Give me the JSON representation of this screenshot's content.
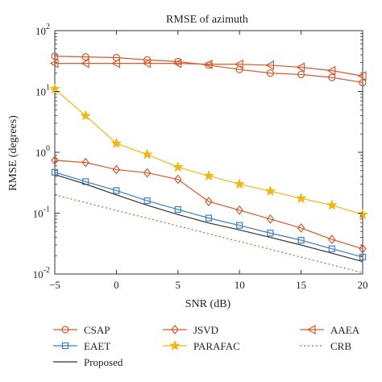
{
  "chart_data": {
    "type": "line",
    "title": "RMSE of azimuth",
    "xlabel": "SNR (dB)",
    "ylabel": "RMSE (degrees)",
    "x_scale": "linear",
    "y_scale": "log",
    "xlim": [
      -5,
      20
    ],
    "ylim": [
      0.01,
      100
    ],
    "x_ticks": [
      -5,
      0,
      5,
      10,
      15,
      20
    ],
    "y_ticks": [
      {
        "value": 0.01,
        "base": "10",
        "exp": "-2"
      },
      {
        "value": 0.1,
        "base": "10",
        "exp": "-1"
      },
      {
        "value": 1,
        "base": "10",
        "exp": "0"
      },
      {
        "value": 10,
        "base": "10",
        "exp": "1"
      },
      {
        "value": 100,
        "base": "10",
        "exp": "2"
      }
    ],
    "grid": false,
    "legend_position": "bottom",
    "series": [
      {
        "name": "CSAP",
        "color": "#d35a2a",
        "marker": "circle",
        "line": "solid",
        "x": [
          -5,
          -2.5,
          0,
          2.5,
          5,
          7.5,
          10,
          12.5,
          15,
          17.5,
          20
        ],
        "y": [
          38,
          37,
          36,
          33,
          31,
          27,
          23,
          20,
          19,
          17,
          14
        ]
      },
      {
        "name": "JSVD",
        "color": "#d35a2a",
        "marker": "diamond",
        "line": "solid",
        "x": [
          -5,
          -2.5,
          0,
          2.5,
          5,
          7.5,
          10,
          12.5,
          15,
          17.5,
          20
        ],
        "y": [
          0.74,
          0.68,
          0.52,
          0.46,
          0.36,
          0.155,
          0.112,
          0.08,
          0.057,
          0.037,
          0.026
        ]
      },
      {
        "name": "AAEA",
        "color": "#d35a2a",
        "marker": "triangle-left",
        "line": "solid",
        "x": [
          -5,
          -2.5,
          0,
          2.5,
          5,
          7.5,
          10,
          12.5,
          15,
          17.5,
          20
        ],
        "y": [
          29,
          29,
          29,
          29,
          29,
          28,
          28,
          27,
          25,
          22,
          18
        ]
      },
      {
        "name": "EAET",
        "color": "#3a7fc4",
        "marker": "square",
        "line": "solid",
        "x": [
          -5,
          -2.5,
          0,
          2.5,
          5,
          7.5,
          10,
          12.5,
          15,
          17.5,
          20
        ],
        "y": [
          0.47,
          0.33,
          0.235,
          0.16,
          0.115,
          0.083,
          0.063,
          0.047,
          0.036,
          0.026,
          0.019
        ]
      },
      {
        "name": "PARAFAC",
        "color": "#f2b515",
        "marker": "star",
        "line": "solid",
        "x": [
          -5,
          -2.5,
          0,
          2.5,
          5,
          7.5,
          10,
          12.5,
          15,
          17.5,
          20
        ],
        "y": [
          11,
          4,
          1.4,
          0.92,
          0.57,
          0.41,
          0.3,
          0.23,
          0.175,
          0.135,
          0.095
        ]
      },
      {
        "name": "CRB",
        "color": "#d35a2a",
        "marker": "none",
        "line": "dotted",
        "x": [
          -5,
          20
        ],
        "y": [
          0.2,
          0.0105
        ]
      },
      {
        "name": "Proposed",
        "color": "#333333",
        "marker": "none",
        "line": "solid",
        "x": [
          -5,
          -2.5,
          0,
          2.5,
          5,
          7.5,
          10,
          12.5,
          15,
          17.5,
          20
        ],
        "y": [
          0.43,
          0.3,
          0.2,
          0.135,
          0.095,
          0.069,
          0.053,
          0.04,
          0.03,
          0.022,
          0.016
        ]
      }
    ]
  }
}
